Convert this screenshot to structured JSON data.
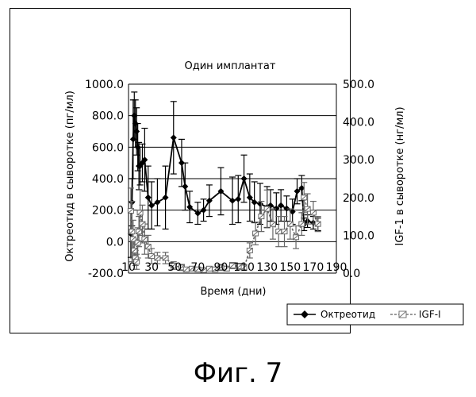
{
  "figure": {
    "caption": "Фиг. 7"
  },
  "chart_data": {
    "type": "line",
    "title": "Один имплантат",
    "xlabel": "Время (дни)",
    "ylabel_left": "Октреотид в сыворотке (пг/мл)",
    "ylabel_right": "IGF-1 в сыворотке (нг/мл)",
    "xlim": [
      10,
      190
    ],
    "ylim_left": [
      -200,
      1000
    ],
    "ylim_right": [
      0,
      500
    ],
    "x_ticks": [
      "10",
      "30",
      "50",
      "70",
      "90",
      "110",
      "130",
      "150",
      "170",
      "190"
    ],
    "x_tick_values": [
      10,
      30,
      50,
      70,
      90,
      110,
      130,
      150,
      170,
      190
    ],
    "y_left_ticks": [
      "1000.0",
      "800.0",
      "600.0",
      "400.0",
      "200.0",
      "0.0",
      "-200.0"
    ],
    "y_left_tick_values": [
      1000,
      800,
      600,
      400,
      200,
      0,
      -200
    ],
    "y_right_ticks": [
      "500.0",
      "400.0",
      "300.0",
      "200.0",
      "100.0",
      "0.0"
    ],
    "y_right_tick_values": [
      500,
      400,
      300,
      200,
      100,
      0
    ],
    "grid": "horizontal",
    "legend_position": "bottom-right",
    "series": [
      {
        "name": "Октреотид",
        "axis": "left",
        "color": "#000000",
        "marker": "diamond",
        "x": [
          12,
          13,
          14,
          15,
          16,
          17,
          18,
          19,
          20,
          22,
          24,
          27,
          30,
          35,
          42,
          49,
          56,
          59,
          63,
          70,
          75,
          80,
          90,
          100,
          105,
          110,
          115,
          119,
          124,
          130,
          133,
          138,
          142,
          147,
          152,
          156,
          160,
          162,
          165,
          170,
          174
        ],
        "y": [
          50,
          250,
          650,
          800,
          750,
          700,
          600,
          480,
          480,
          500,
          520,
          280,
          230,
          250,
          280,
          660,
          500,
          350,
          220,
          180,
          200,
          260,
          320,
          260,
          270,
          400,
          280,
          250,
          240,
          220,
          230,
          210,
          230,
          210,
          190,
          320,
          340,
          110,
          130,
          120,
          110
        ],
        "err": [
          150,
          150,
          250,
          150,
          150,
          150,
          150,
          150,
          120,
          120,
          200,
          200,
          150,
          150,
          200,
          230,
          150,
          150,
          100,
          70,
          70,
          100,
          150,
          150,
          150,
          150,
          150,
          130,
          130,
          130,
          100,
          100,
          100,
          80,
          80,
          80,
          80,
          40,
          40,
          40,
          40
        ]
      },
      {
        "name": "IGF-I",
        "axis": "right",
        "color": "#666666",
        "marker": "hatched",
        "x": [
          12,
          13,
          14,
          15,
          16,
          17,
          18,
          19,
          20,
          22,
          24,
          27,
          30,
          35,
          42,
          49,
          56,
          60,
          65,
          70,
          75,
          80,
          85,
          90,
          95,
          100,
          106,
          110,
          115,
          120,
          125,
          130,
          135,
          140,
          145,
          150,
          155,
          160,
          162,
          165,
          170,
          174
        ],
        "y": [
          165,
          110,
          90,
          60,
          40,
          30,
          80,
          110,
          160,
          130,
          90,
          70,
          45,
          40,
          40,
          20,
          15,
          10,
          12,
          10,
          8,
          12,
          10,
          15,
          12,
          20,
          18,
          15,
          60,
          105,
          150,
          170,
          130,
          110,
          110,
          130,
          95,
          130,
          200,
          170,
          160,
          130
        ],
        "err": [
          60,
          80,
          50,
          30,
          20,
          20,
          40,
          40,
          60,
          50,
          40,
          30,
          20,
          15,
          15,
          10,
          8,
          5,
          5,
          5,
          5,
          5,
          5,
          8,
          6,
          8,
          8,
          8,
          20,
          30,
          40,
          50,
          40,
          40,
          40,
          40,
          30,
          30,
          40,
          40,
          30,
          20
        ]
      }
    ]
  }
}
